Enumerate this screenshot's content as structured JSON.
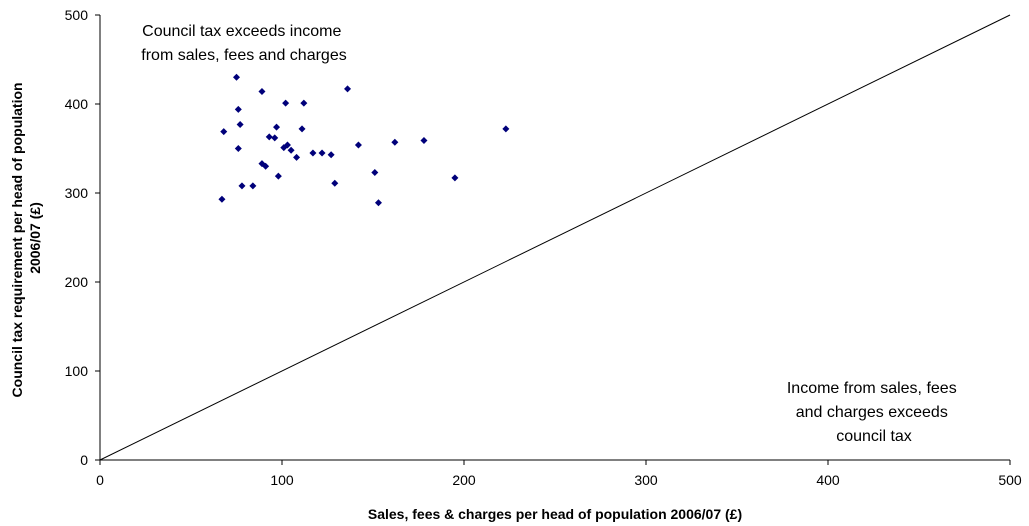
{
  "chart_data": {
    "type": "scatter",
    "xlabel": "Sales, fees & charges per head of population 2006/07 (£)",
    "ylabel": [
      "Council tax requirement per head of population",
      "2006/07 (£)"
    ],
    "xlim": [
      0,
      500
    ],
    "ylim": [
      0,
      500
    ],
    "xticks": [
      0,
      100,
      200,
      300,
      400,
      500
    ],
    "yticks": [
      0,
      100,
      200,
      300,
      400,
      500
    ],
    "grid": false,
    "marker_color": "#00007a",
    "line_color": "#000000",
    "reference_line": {
      "x": [
        0,
        500
      ],
      "y": [
        0,
        500
      ]
    },
    "annotations": {
      "upper_left": [
        "Council tax exceeds income",
        "from sales, fees and charges"
      ],
      "lower_right": [
        "Income from sales, fees",
        "and charges exceeds",
        "council tax"
      ]
    },
    "points": [
      {
        "x": 75,
        "y": 430
      },
      {
        "x": 89,
        "y": 414
      },
      {
        "x": 136,
        "y": 417
      },
      {
        "x": 76,
        "y": 394
      },
      {
        "x": 102,
        "y": 401
      },
      {
        "x": 112,
        "y": 401
      },
      {
        "x": 68,
        "y": 369
      },
      {
        "x": 77,
        "y": 377
      },
      {
        "x": 97,
        "y": 374
      },
      {
        "x": 111,
        "y": 372
      },
      {
        "x": 223,
        "y": 372
      },
      {
        "x": 93,
        "y": 363
      },
      {
        "x": 96,
        "y": 362
      },
      {
        "x": 142,
        "y": 354
      },
      {
        "x": 162,
        "y": 357
      },
      {
        "x": 178,
        "y": 359
      },
      {
        "x": 76,
        "y": 350
      },
      {
        "x": 101,
        "y": 351
      },
      {
        "x": 103,
        "y": 354
      },
      {
        "x": 105,
        "y": 348
      },
      {
        "x": 117,
        "y": 345
      },
      {
        "x": 122,
        "y": 345
      },
      {
        "x": 127,
        "y": 343
      },
      {
        "x": 108,
        "y": 340
      },
      {
        "x": 89,
        "y": 333
      },
      {
        "x": 91,
        "y": 330
      },
      {
        "x": 98,
        "y": 319
      },
      {
        "x": 151,
        "y": 323
      },
      {
        "x": 195,
        "y": 317
      },
      {
        "x": 129,
        "y": 311
      },
      {
        "x": 78,
        "y": 308
      },
      {
        "x": 84,
        "y": 308
      },
      {
        "x": 67,
        "y": 293
      },
      {
        "x": 153,
        "y": 289
      }
    ]
  }
}
